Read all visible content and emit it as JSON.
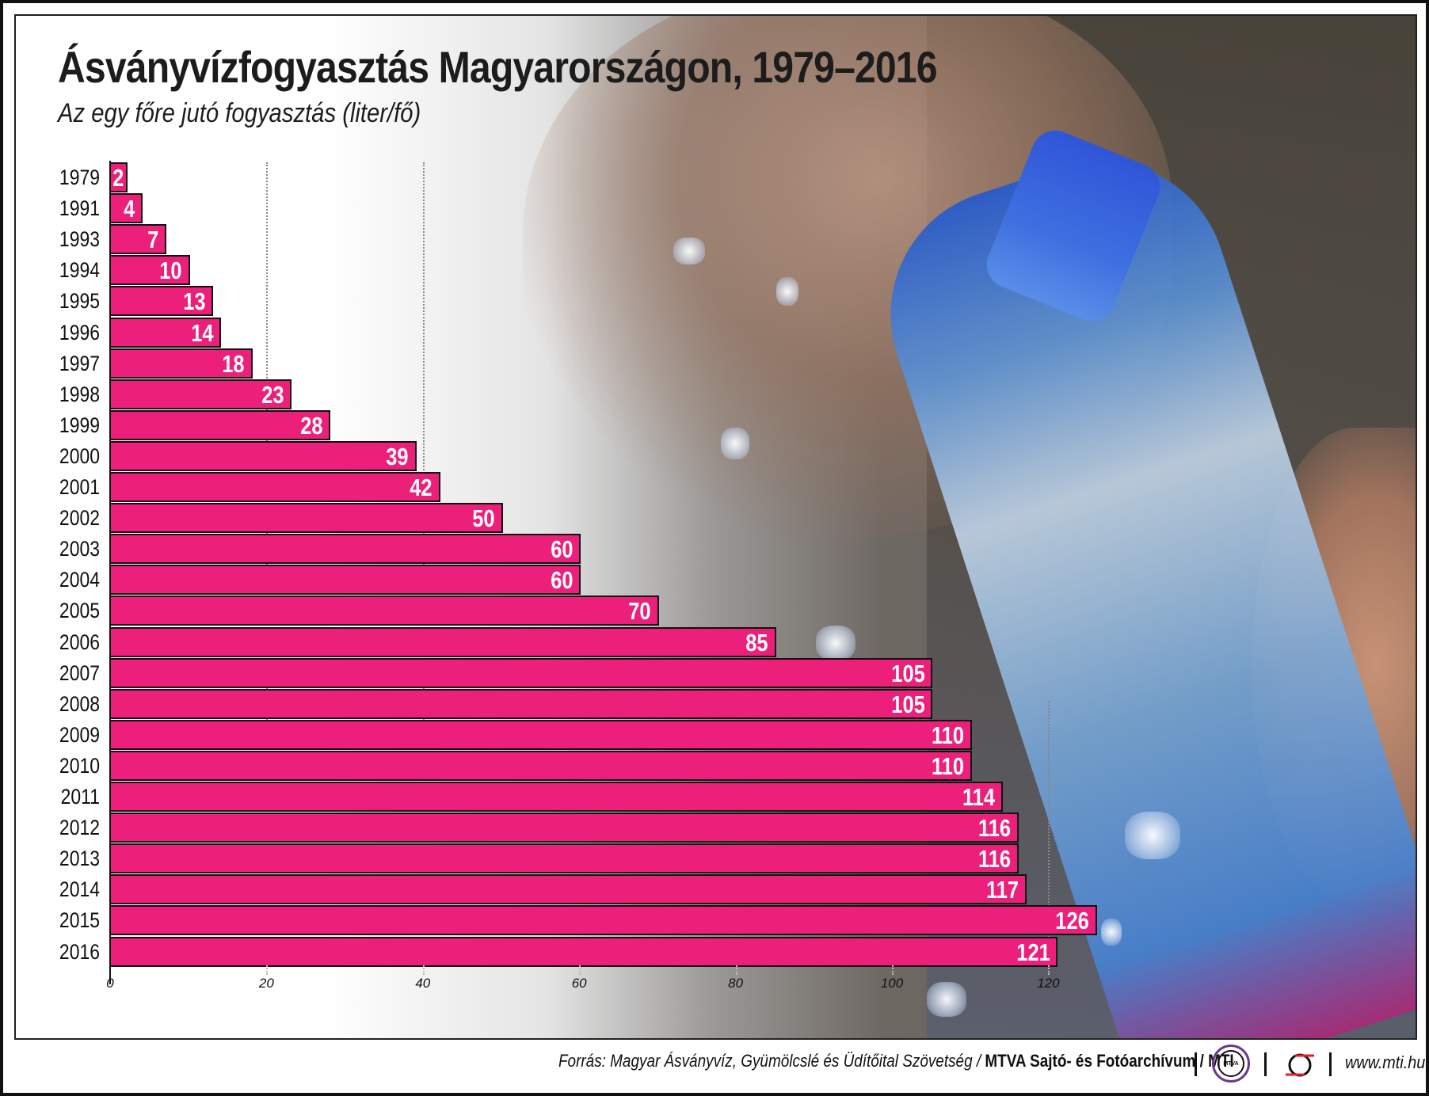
{
  "header": {
    "title": "Ásványvízfogyasztás Magyarországon, 1979–2016",
    "subtitle": "Az egy főre jutó fogyasztás (liter/fő)"
  },
  "colors": {
    "bar": "#ec207a",
    "bar_border": "#111111",
    "value_text": "#ffffff",
    "mtva_ring": "#6a3a8a",
    "mti_red": "#e0202a"
  },
  "chart_data": {
    "type": "bar",
    "orientation": "horizontal",
    "title": "Ásványvízfogyasztás Magyarországon, 1979–2016",
    "subtitle": "Az egy főre jutó fogyasztás (liter/fő)",
    "xlabel": "",
    "ylabel": "",
    "unit": "liter/fő",
    "categories": [
      "1979",
      "1991",
      "1993",
      "1994",
      "1995",
      "1996",
      "1997",
      "1998",
      "1999",
      "2000",
      "2001",
      "2002",
      "2003",
      "2004",
      "2005",
      "2006",
      "2007",
      "2008",
      "2009",
      "2010",
      "2011",
      "2012",
      "2013",
      "2014",
      "2015",
      "2016"
    ],
    "values": [
      2,
      4,
      7,
      10,
      13,
      14,
      18,
      23,
      28,
      39,
      42,
      50,
      60,
      60,
      70,
      85,
      105,
      105,
      110,
      110,
      114,
      116,
      116,
      117,
      126,
      121
    ],
    "xlim": [
      0,
      126
    ],
    "xticks": [
      "0",
      "20",
      "40",
      "60",
      "80",
      "100",
      "120"
    ],
    "grid": "dotted vertical at 20, 40, 120",
    "data_labels": true
  },
  "footer": {
    "source_label": "Forrás: Magyar Ásványvíz, Gyümölcslé és Üdítőital Szövetség / ",
    "archive_label": "MTVA Sajtó- és Fotóarchívum / MTI",
    "mtva_logo_text": "MTVA",
    "url": "www.mti.hu"
  }
}
